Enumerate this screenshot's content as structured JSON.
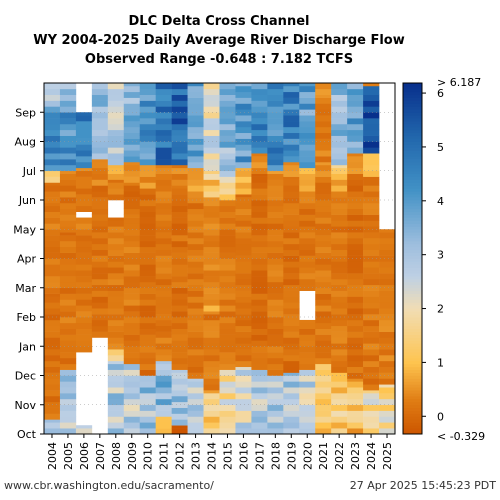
{
  "chart_data": {
    "type": "heatmap",
    "title": "DLC Delta Cross Channel",
    "subtitle": "WY 2004-2025 Daily Average River Discharge Flow",
    "range_note": "Observed Range -0.648 : 7.182 TCFS",
    "x": [
      "2004",
      "2005",
      "2006",
      "2007",
      "2008",
      "2009",
      "2010",
      "2011",
      "2012",
      "2013",
      "2014",
      "2015",
      "2016",
      "2017",
      "2018",
      "2019",
      "2020",
      "2021",
      "2022",
      "2023",
      "2024",
      "2025"
    ],
    "y_months": [
      "Oct",
      "Nov",
      "Dec",
      "Jan",
      "Feb",
      "Mar",
      "Apr",
      "May",
      "Jun",
      "Jul",
      "Aug",
      "Sep"
    ],
    "colorbar": {
      "ticks": [
        "0",
        "1",
        "2",
        "3",
        "4",
        "5",
        "6"
      ],
      "max_label": "> 6.187",
      "min_label": "< -0.329",
      "vmin": -0.329,
      "vmax": 6.187
    },
    "series": [
      {
        "year": "2004",
        "profile": [
          [
            0,
            0.5,
            3.0
          ],
          [
            0.5,
            4.8,
            0.1
          ],
          [
            4.8,
            7.9,
            0.2
          ],
          [
            7.9,
            8.6,
            0.1
          ],
          [
            8.6,
            9.0,
            1.0
          ],
          [
            9.0,
            11.0,
            4.6
          ],
          [
            11.0,
            12.0,
            3.2
          ]
        ]
      },
      {
        "year": "2005",
        "profile": [
          [
            0,
            2.2,
            3.0
          ],
          [
            2.2,
            5.6,
            0.2
          ],
          [
            5.6,
            6.9,
            0.1
          ],
          [
            6.9,
            8.5,
            0.2
          ],
          [
            8.5,
            9.0,
            0.3
          ],
          [
            9.0,
            11.0,
            4.3
          ],
          [
            11.0,
            12.0,
            3.0
          ]
        ]
      },
      {
        "year": "2006",
        "profile": [
          [
            0,
            0.3,
            3.0
          ],
          [
            0.3,
            2.8,
            "gap"
          ],
          [
            2.8,
            7.4,
            0.2
          ],
          [
            7.4,
            7.6,
            "gap"
          ],
          [
            7.6,
            8.4,
            0.1
          ],
          [
            8.4,
            9.1,
            0.3
          ],
          [
            9.1,
            11.0,
            4.8
          ],
          [
            11.0,
            12.0,
            "gap"
          ]
        ]
      },
      {
        "year": "2007",
        "profile": [
          [
            0,
            3.3,
            "gap"
          ],
          [
            3.3,
            8.5,
            0.1
          ],
          [
            8.5,
            9.4,
            0.4
          ],
          [
            9.4,
            12.0,
            3.1
          ]
        ]
      },
      {
        "year": "2008",
        "profile": [
          [
            0,
            2.5,
            2.9
          ],
          [
            2.5,
            2.9,
            1.0
          ],
          [
            2.9,
            7.4,
            0.2
          ],
          [
            7.4,
            8.0,
            "gap"
          ],
          [
            8.0,
            8.7,
            0.2
          ],
          [
            8.7,
            9.2,
            0.7
          ],
          [
            9.2,
            12.0,
            2.8
          ]
        ]
      },
      {
        "year": "2009",
        "profile": [
          [
            0,
            2.4,
            2.8
          ],
          [
            2.4,
            7.5,
            0.2
          ],
          [
            7.5,
            8.6,
            0.1
          ],
          [
            8.6,
            9.3,
            0.6
          ],
          [
            9.3,
            12.0,
            3.3
          ]
        ]
      },
      {
        "year": "2010",
        "profile": [
          [
            0,
            2.0,
            3.1
          ],
          [
            2.0,
            8.4,
            0.1
          ],
          [
            8.4,
            9.2,
            0.5
          ],
          [
            9.2,
            12.0,
            4.3
          ]
        ]
      },
      {
        "year": "2011",
        "profile": [
          [
            0,
            0.6,
            1.1
          ],
          [
            0.6,
            2.5,
            3.4
          ],
          [
            2.5,
            8.7,
            0.2
          ],
          [
            8.7,
            9.2,
            0.3
          ],
          [
            9.2,
            12.0,
            4.9
          ]
        ]
      },
      {
        "year": "2012",
        "profile": [
          [
            0,
            0.3,
            -0.2
          ],
          [
            0.3,
            2.2,
            3.0
          ],
          [
            2.2,
            8.5,
            0.1
          ],
          [
            8.5,
            9.2,
            0.4
          ],
          [
            9.2,
            12.0,
            5.2
          ]
        ]
      },
      {
        "year": "2013",
        "profile": [
          [
            0,
            1.9,
            2.7
          ],
          [
            1.9,
            8.3,
            0.2
          ],
          [
            8.3,
            9.1,
            0.7
          ],
          [
            9.1,
            12.0,
            3.8
          ]
        ]
      },
      {
        "year": "2014",
        "profile": [
          [
            0,
            1.5,
            1.4
          ],
          [
            1.5,
            4.2,
            0.2
          ],
          [
            4.2,
            4.4,
            1.5
          ],
          [
            4.4,
            8.1,
            0.3
          ],
          [
            8.1,
            9.0,
            1.2
          ],
          [
            9.0,
            12.0,
            2.3
          ]
        ]
      },
      {
        "year": "2015",
        "profile": [
          [
            0,
            2.2,
            1.9
          ],
          [
            2.2,
            8.0,
            0.2
          ],
          [
            8.0,
            8.8,
            1.4
          ],
          [
            8.8,
            12.0,
            3.3
          ]
        ]
      },
      {
        "year": "2016",
        "profile": [
          [
            0,
            2.3,
            2.6
          ],
          [
            2.3,
            8.2,
            0.2
          ],
          [
            8.2,
            9.1,
            0.9
          ],
          [
            9.1,
            12.0,
            4.1
          ]
        ]
      },
      {
        "year": "2017",
        "profile": [
          [
            0,
            2.2,
            2.9
          ],
          [
            2.2,
            8.9,
            0.1
          ],
          [
            8.9,
            9.6,
            0.4
          ],
          [
            9.6,
            12.0,
            4.4
          ]
        ]
      },
      {
        "year": "2018",
        "profile": [
          [
            0,
            2.0,
            2.8
          ],
          [
            2.0,
            8.1,
            0.2
          ],
          [
            8.1,
            9.0,
            0.5
          ],
          [
            9.0,
            12.0,
            4.5
          ]
        ]
      },
      {
        "year": "2019",
        "profile": [
          [
            0,
            2.1,
            3.0
          ],
          [
            2.1,
            8.8,
            0.1
          ],
          [
            8.8,
            9.3,
            0.4
          ],
          [
            9.3,
            12.0,
            4.6
          ]
        ]
      },
      {
        "year": "2020",
        "profile": [
          [
            0,
            2.2,
            2.6
          ],
          [
            2.2,
            3.9,
            0.2
          ],
          [
            3.9,
            4.9,
            "gap"
          ],
          [
            4.9,
            8.3,
            0.2
          ],
          [
            8.3,
            9.1,
            0.8
          ],
          [
            9.1,
            12.0,
            3.9
          ]
        ]
      },
      {
        "year": "2021",
        "profile": [
          [
            0,
            2.4,
            1.2
          ],
          [
            2.4,
            8.6,
            0.2
          ],
          [
            8.6,
            9.3,
            0.4
          ],
          [
            9.3,
            11.6,
            0.3
          ],
          [
            11.6,
            12.0,
            0.5
          ]
        ]
      },
      {
        "year": "2022",
        "profile": [
          [
            0,
            2.1,
            1.4
          ],
          [
            2.1,
            8.1,
            0.2
          ],
          [
            8.1,
            9.2,
            1.0
          ],
          [
            9.2,
            12.0,
            3.2
          ]
        ]
      },
      {
        "year": "2023",
        "profile": [
          [
            0,
            1.9,
            1.1
          ],
          [
            1.9,
            8.9,
            0.1
          ],
          [
            8.9,
            9.6,
            0.4
          ],
          [
            9.6,
            12.0,
            3.9
          ]
        ]
      },
      {
        "year": "2024",
        "profile": [
          [
            0,
            1.5,
            1.8
          ],
          [
            1.5,
            8.8,
            0.2
          ],
          [
            8.8,
            9.6,
            0.9
          ],
          [
            9.6,
            11.9,
            5.9
          ],
          [
            11.9,
            12.0,
            0.2
          ]
        ]
      },
      {
        "year": "2025",
        "profile": [
          [
            0,
            1.7,
            1.8
          ],
          [
            1.7,
            7.0,
            0.3
          ],
          [
            7.0,
            12.0,
            "gap"
          ]
        ]
      }
    ]
  },
  "footer": {
    "left": "www.cbr.washington.edu/sacramento/",
    "right": "27 Apr 2025 15:45:23 PDT"
  }
}
